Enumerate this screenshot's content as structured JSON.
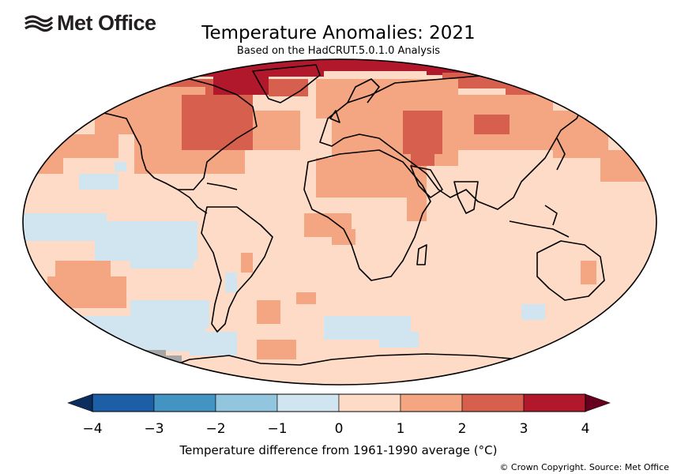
{
  "logo": {
    "text": "Met Office"
  },
  "map": {
    "title": "Temperature Anomalies: 2021",
    "subtitle": "Based on the HadCRUT.5.0.1.0 Analysis",
    "projection": "Robinson",
    "missing_data_color": "#a6a6a6"
  },
  "colorbar": {
    "label": "Temperature difference from 1961-1990 average (°C)",
    "ticks": [
      "−4",
      "−3",
      "−2",
      "−1",
      "0",
      "1",
      "2",
      "3",
      "4"
    ],
    "bins": [
      {
        "range": "below -4",
        "color": "#0b2e5e"
      },
      {
        "range": "-4 to -3",
        "color": "#1d5fa7"
      },
      {
        "range": "-3 to -2",
        "color": "#4393c3"
      },
      {
        "range": "-2 to -1",
        "color": "#92c5de"
      },
      {
        "range": "-1 to 0",
        "color": "#d1e5f0"
      },
      {
        "range": "0 to 1",
        "color": "#fddbc7"
      },
      {
        "range": "1 to 2",
        "color": "#f4a582"
      },
      {
        "range": "2 to 3",
        "color": "#d6604d"
      },
      {
        "range": "3 to 4",
        "color": "#b2182b"
      },
      {
        "range": "above 4",
        "color": "#67001f"
      }
    ]
  },
  "footer": {
    "copyright": "© Crown Copyright. Source: Met Office"
  }
}
